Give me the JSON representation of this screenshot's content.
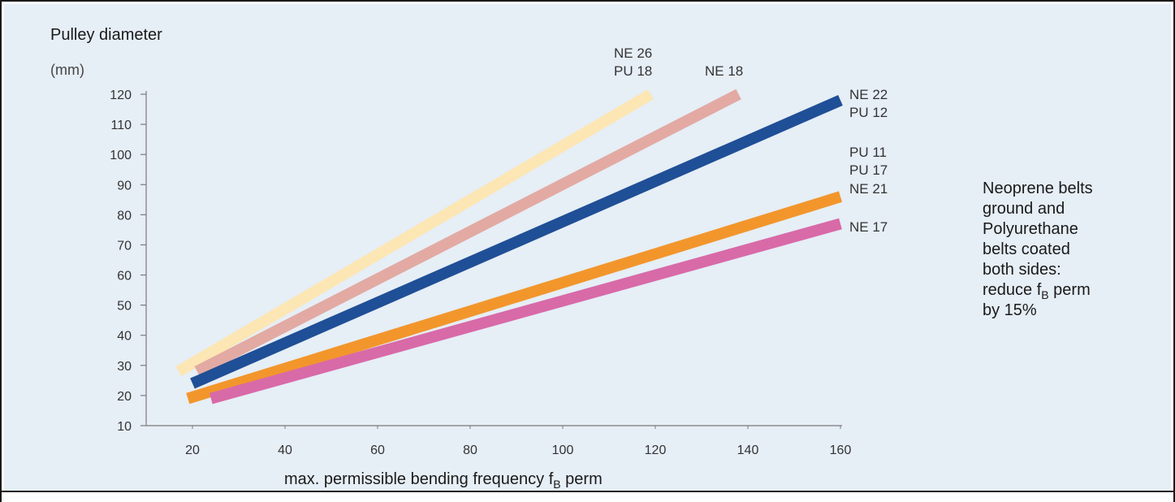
{
  "chart_data": {
    "type": "line",
    "title": "",
    "ylabel": "Pulley diameter",
    "yunit": "(mm)",
    "xlabel": "max. permissible bending frequency f",
    "xlabel_sub": "B",
    "xlabel_tail": " perm",
    "xlim": [
      10,
      160
    ],
    "ylim": [
      10,
      120
    ],
    "xticks": [
      20,
      40,
      60,
      80,
      100,
      120,
      140,
      160
    ],
    "yticks": [
      10,
      20,
      30,
      40,
      50,
      60,
      70,
      80,
      90,
      100,
      110,
      120
    ],
    "grid": false,
    "series": [
      {
        "name": "NE 26 / PU 18",
        "color": "#fce6b3",
        "x": [
          17,
          119
        ],
        "y": [
          28,
          120
        ]
      },
      {
        "name": "NE 18",
        "color": "#e2aaa3",
        "x": [
          21,
          138
        ],
        "y": [
          28,
          120
        ]
      },
      {
        "name": "NE 22 / PU 12",
        "color": "#1f4f96",
        "x": [
          20,
          160
        ],
        "y": [
          24,
          118
        ]
      },
      {
        "name": "PU 11 / PU 17 / NE 21",
        "color": "#f2962c",
        "x": [
          19,
          160
        ],
        "y": [
          19,
          86
        ]
      },
      {
        "name": "NE 17",
        "color": "#d86aa8",
        "x": [
          24,
          160
        ],
        "y": [
          19,
          77
        ]
      }
    ],
    "annotations": {
      "top_left_label_1": "NE 26",
      "top_left_label_2": "PU 18",
      "top_right_label": "NE 18",
      "right_labels": [
        "NE 22",
        "PU 12",
        "PU 11",
        "PU 17",
        "NE 21",
        "NE 17"
      ]
    },
    "note": {
      "lines": [
        "Neoprene belts",
        "ground and",
        "Polyurethane",
        "belts coated",
        "both sides:"
      ],
      "reduce_prefix": "reduce f",
      "reduce_sub": "B",
      "reduce_suffix": " perm",
      "last_line": "by 15%"
    }
  },
  "colors": {
    "background": "#e6eef6",
    "axis": "#7a7a7a",
    "tick_text": "#333333",
    "label_text": "#1a1a1a"
  }
}
